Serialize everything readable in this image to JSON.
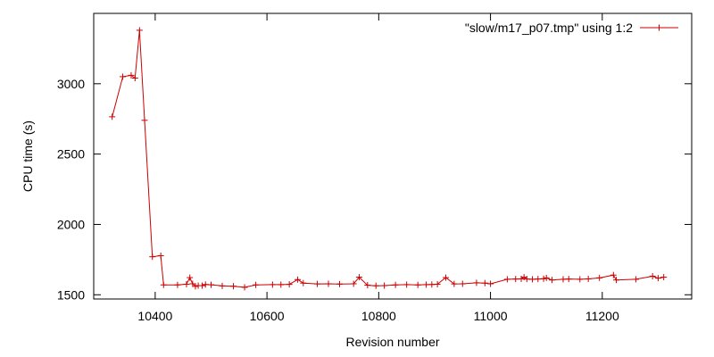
{
  "chart_data": {
    "type": "line",
    "title": "",
    "xlabel": "Revision number",
    "ylabel": "CPU time (s)",
    "xlim": [
      10290,
      11360
    ],
    "ylim": [
      1470,
      3500
    ],
    "x_ticks": [
      10400,
      10600,
      10800,
      11000,
      11200
    ],
    "y_ticks": [
      1500,
      2000,
      2500,
      3000
    ],
    "grid": false,
    "legend_position": "top-right",
    "series": [
      {
        "name": "\"slow/m17_p07.tmp\" using 1:2",
        "color": "#cc0000",
        "marker": "plus",
        "points": [
          [
            10323,
            2765
          ],
          [
            10342,
            3050
          ],
          [
            10357,
            3060
          ],
          [
            10364,
            3040
          ],
          [
            10372,
            3380
          ],
          [
            10381,
            2740
          ],
          [
            10395,
            1770
          ],
          [
            10410,
            1778
          ],
          [
            10415,
            1570
          ],
          [
            10440,
            1570
          ],
          [
            10456,
            1575
          ],
          [
            10462,
            1622
          ],
          [
            10467,
            1578
          ],
          [
            10472,
            1560
          ],
          [
            10477,
            1565
          ],
          [
            10484,
            1565
          ],
          [
            10490,
            1573
          ],
          [
            10500,
            1571
          ],
          [
            10520,
            1563
          ],
          [
            10540,
            1561
          ],
          [
            10560,
            1553
          ],
          [
            10580,
            1570
          ],
          [
            10610,
            1572
          ],
          [
            10625,
            1572
          ],
          [
            10640,
            1574
          ],
          [
            10655,
            1608
          ],
          [
            10665,
            1583
          ],
          [
            10690,
            1577
          ],
          [
            10710,
            1578
          ],
          [
            10730,
            1576
          ],
          [
            10755,
            1578
          ],
          [
            10765,
            1625
          ],
          [
            10780,
            1568
          ],
          [
            10795,
            1564
          ],
          [
            10810,
            1565
          ],
          [
            10830,
            1570
          ],
          [
            10850,
            1572
          ],
          [
            10870,
            1570
          ],
          [
            10885,
            1572
          ],
          [
            10895,
            1573
          ],
          [
            10905,
            1575
          ],
          [
            10920,
            1622
          ],
          [
            10935,
            1577
          ],
          [
            10950,
            1578
          ],
          [
            10975,
            1585
          ],
          [
            10990,
            1583
          ],
          [
            11000,
            1578
          ],
          [
            11030,
            1610
          ],
          [
            11045,
            1612
          ],
          [
            11055,
            1613
          ],
          [
            11060,
            1625
          ],
          [
            11065,
            1612
          ],
          [
            11075,
            1610
          ],
          [
            11085,
            1612
          ],
          [
            11095,
            1614
          ],
          [
            11100,
            1620
          ],
          [
            11110,
            1605
          ],
          [
            11130,
            1610
          ],
          [
            11140,
            1612
          ],
          [
            11160,
            1610
          ],
          [
            11175,
            1613
          ],
          [
            11195,
            1620
          ],
          [
            11220,
            1640
          ],
          [
            11225,
            1605
          ],
          [
            11260,
            1610
          ],
          [
            11290,
            1632
          ],
          [
            11300,
            1618
          ],
          [
            11310,
            1625
          ]
        ]
      }
    ]
  }
}
